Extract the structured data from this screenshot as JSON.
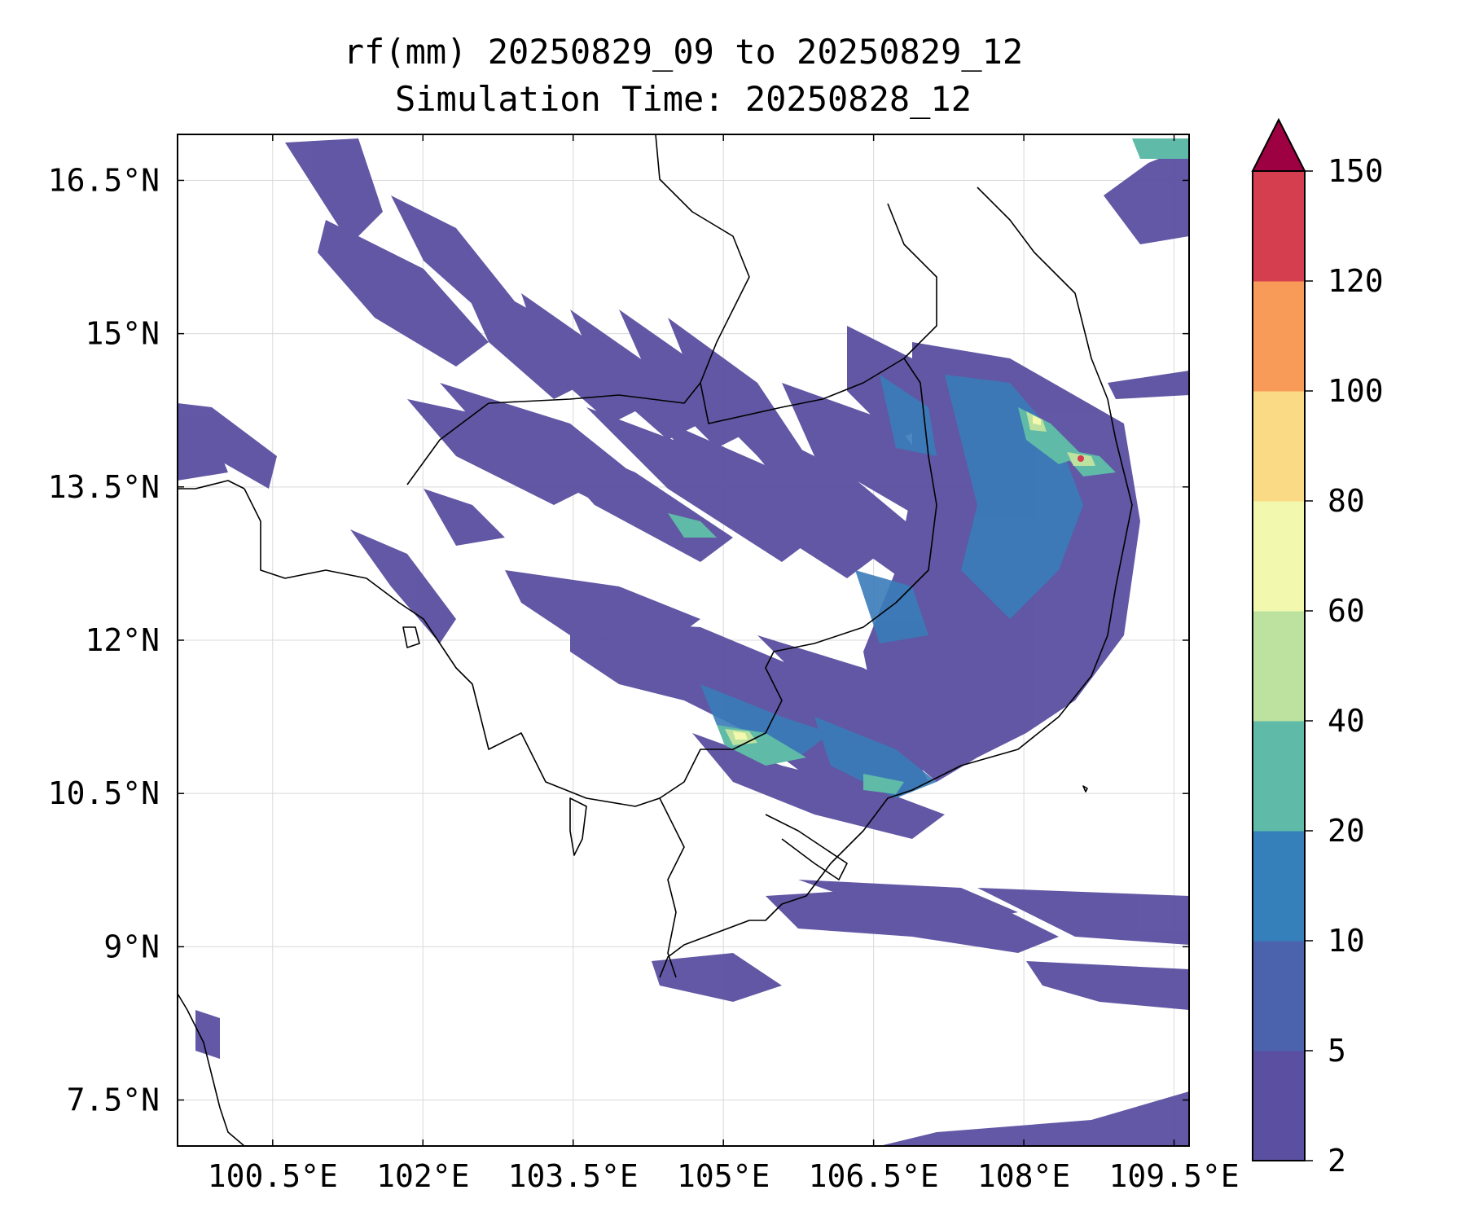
{
  "title": {
    "line1": "rf(mm) 20250829_09 to 20250829_12",
    "line2": "Simulation Time: 20250828_12"
  },
  "map": {
    "lon_range": [
      99.55,
      109.65
    ],
    "lat_range": [
      7.05,
      16.95
    ],
    "lon_ticks": [
      {
        "value": 100.5,
        "label": "100.5°E"
      },
      {
        "value": 102.0,
        "label": "102°E"
      },
      {
        "value": 103.5,
        "label": "103.5°E"
      },
      {
        "value": 105.0,
        "label": "105°E"
      },
      {
        "value": 106.5,
        "label": "106.5°E"
      },
      {
        "value": 108.0,
        "label": "108°E"
      },
      {
        "value": 109.5,
        "label": "109.5°E"
      }
    ],
    "lat_ticks": [
      {
        "value": 16.5,
        "label": "16.5°N"
      },
      {
        "value": 15.0,
        "label": "15°N"
      },
      {
        "value": 13.5,
        "label": "13.5°N"
      },
      {
        "value": 12.0,
        "label": "12°N"
      },
      {
        "value": 10.5,
        "label": "10.5°N"
      },
      {
        "value": 9.0,
        "label": "9°N"
      },
      {
        "value": 7.5,
        "label": "7.5°N"
      }
    ],
    "grid": true
  },
  "colorbar": {
    "levels": [
      2,
      5,
      10,
      20,
      40,
      60,
      80,
      100,
      120,
      150
    ],
    "labels": [
      "2",
      "5",
      "10",
      "20",
      "40",
      "60",
      "80",
      "100",
      "120",
      "150"
    ],
    "colors": [
      "#5a4fa0",
      "#4b63ad",
      "#3580bb",
      "#5fbaa8",
      "#bde2a0",
      "#f2f9ae",
      "#fbda86",
      "#f99b58",
      "#d53e4f"
    ],
    "extend_color": "#9e0142",
    "extend": "max"
  }
}
